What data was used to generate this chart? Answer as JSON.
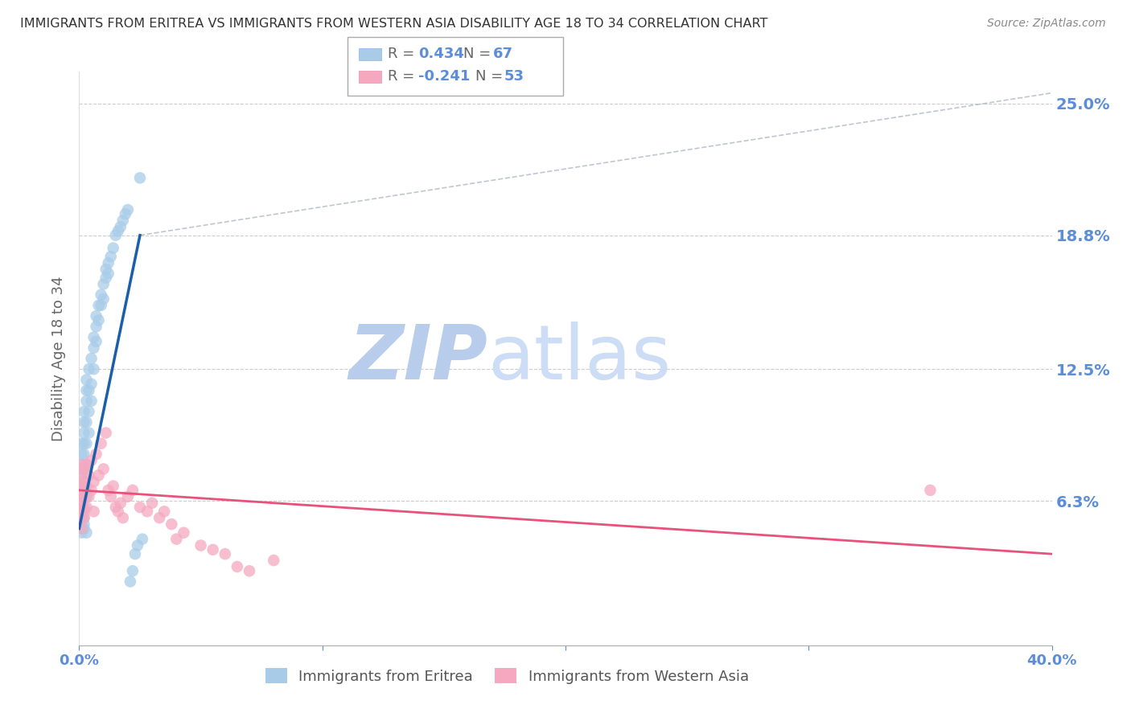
{
  "title": "IMMIGRANTS FROM ERITREA VS IMMIGRANTS FROM WESTERN ASIA DISABILITY AGE 18 TO 34 CORRELATION CHART",
  "source": "Source: ZipAtlas.com",
  "ylabel": "Disability Age 18 to 34",
  "ytick_labels": [
    "6.3%",
    "12.5%",
    "18.8%",
    "25.0%"
  ],
  "ytick_vals": [
    0.063,
    0.125,
    0.188,
    0.25
  ],
  "xlim": [
    0.0,
    0.4
  ],
  "ylim": [
    -0.005,
    0.265
  ],
  "series1_label": "Immigrants from Eritrea",
  "series2_label": "Immigrants from Western Asia",
  "series1_R": "0.434",
  "series1_N": "67",
  "series2_R": "-0.241",
  "series2_N": "53",
  "series1_color": "#a8cce8",
  "series2_color": "#f5a8c0",
  "series1_trend_color": "#1a5fa8",
  "series2_trend_color": "#e8527a",
  "background_color": "#ffffff",
  "grid_color": "#cccccc",
  "title_color": "#333333",
  "axis_label_color": "#5b8dd9",
  "watermark_zip_color": "#c8d8f0",
  "watermark_atlas_color": "#d8e8f8",
  "series1_x": [
    0.001,
    0.001,
    0.001,
    0.001,
    0.001,
    0.001,
    0.001,
    0.001,
    0.001,
    0.001,
    0.002,
    0.002,
    0.002,
    0.002,
    0.002,
    0.002,
    0.002,
    0.002,
    0.002,
    0.002,
    0.003,
    0.003,
    0.003,
    0.003,
    0.003,
    0.003,
    0.003,
    0.004,
    0.004,
    0.004,
    0.004,
    0.005,
    0.005,
    0.005,
    0.006,
    0.006,
    0.006,
    0.007,
    0.007,
    0.007,
    0.008,
    0.008,
    0.009,
    0.009,
    0.01,
    0.01,
    0.011,
    0.011,
    0.012,
    0.012,
    0.013,
    0.014,
    0.015,
    0.016,
    0.017,
    0.018,
    0.019,
    0.02,
    0.021,
    0.022,
    0.023,
    0.024,
    0.025,
    0.026,
    0.001,
    0.002,
    0.003
  ],
  "series1_y": [
    0.058,
    0.065,
    0.07,
    0.075,
    0.08,
    0.085,
    0.09,
    0.05,
    0.06,
    0.055,
    0.06,
    0.07,
    0.078,
    0.085,
    0.09,
    0.095,
    0.1,
    0.105,
    0.055,
    0.05,
    0.08,
    0.09,
    0.1,
    0.11,
    0.115,
    0.12,
    0.065,
    0.095,
    0.105,
    0.115,
    0.125,
    0.11,
    0.118,
    0.13,
    0.135,
    0.125,
    0.14,
    0.145,
    0.138,
    0.15,
    0.155,
    0.148,
    0.16,
    0.155,
    0.165,
    0.158,
    0.172,
    0.168,
    0.175,
    0.17,
    0.178,
    0.182,
    0.188,
    0.19,
    0.192,
    0.195,
    0.198,
    0.2,
    0.025,
    0.03,
    0.038,
    0.042,
    0.215,
    0.045,
    0.048,
    0.052,
    0.048
  ],
  "series2_x": [
    0.001,
    0.001,
    0.001,
    0.001,
    0.001,
    0.001,
    0.001,
    0.001,
    0.001,
    0.001,
    0.002,
    0.002,
    0.002,
    0.002,
    0.002,
    0.003,
    0.003,
    0.003,
    0.004,
    0.004,
    0.005,
    0.005,
    0.006,
    0.006,
    0.007,
    0.008,
    0.009,
    0.01,
    0.011,
    0.012,
    0.013,
    0.014,
    0.015,
    0.016,
    0.017,
    0.018,
    0.02,
    0.022,
    0.025,
    0.028,
    0.03,
    0.033,
    0.035,
    0.038,
    0.04,
    0.043,
    0.05,
    0.055,
    0.06,
    0.065,
    0.07,
    0.08,
    0.35
  ],
  "series2_y": [
    0.06,
    0.065,
    0.07,
    0.075,
    0.08,
    0.055,
    0.058,
    0.062,
    0.068,
    0.05,
    0.072,
    0.065,
    0.078,
    0.058,
    0.055,
    0.08,
    0.07,
    0.06,
    0.075,
    0.065,
    0.082,
    0.068,
    0.072,
    0.058,
    0.085,
    0.075,
    0.09,
    0.078,
    0.095,
    0.068,
    0.065,
    0.07,
    0.06,
    0.058,
    0.062,
    0.055,
    0.065,
    0.068,
    0.06,
    0.058,
    0.062,
    0.055,
    0.058,
    0.052,
    0.045,
    0.048,
    0.042,
    0.04,
    0.038,
    0.032,
    0.03,
    0.035,
    0.068
  ],
  "trend1_x": [
    0.0,
    0.025
  ],
  "trend1_y": [
    0.05,
    0.188
  ],
  "trend2_x": [
    0.0,
    0.4
  ],
  "trend2_y": [
    0.068,
    0.038
  ],
  "ref_line_x": [
    0.025,
    0.4
  ],
  "ref_line_y": [
    0.188,
    0.255
  ]
}
